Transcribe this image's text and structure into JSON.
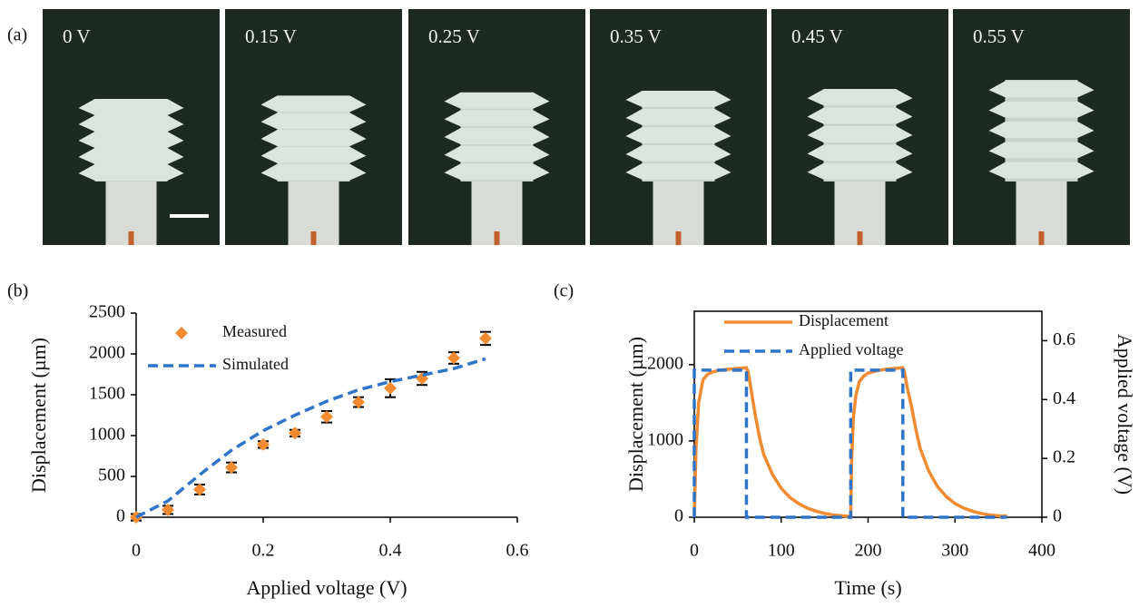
{
  "panel_labels": [
    "(a)",
    "(b)",
    "(c)"
  ],
  "photos": [
    "0 V",
    "0.15 V",
    "0.25 V",
    "0.35 V",
    "0.45 V",
    "0.55 V"
  ],
  "chart_data": [
    {
      "type": "scatter",
      "xlabel": "Applied voltage (V)",
      "ylabel": "Displacement (µm)",
      "x": [
        0,
        0.05,
        0.1,
        0.15,
        0.2,
        0.25,
        0.3,
        0.35,
        0.4,
        0.45,
        0.5,
        0.55
      ],
      "series": [
        {
          "name": "Measured",
          "color": "#f28a30",
          "marker": "diamond",
          "values": [
            0,
            90,
            340,
            610,
            890,
            1030,
            1230,
            1410,
            1580,
            1700,
            1950,
            2190
          ],
          "errors": [
            40,
            50,
            60,
            60,
            40,
            40,
            70,
            60,
            110,
            80,
            70,
            80
          ]
        },
        {
          "name": "Simulated",
          "color": "#2e75c9",
          "dashed": true,
          "values": [
            0,
            200,
            520,
            820,
            1060,
            1250,
            1420,
            1560,
            1660,
            1740,
            1820,
            1940
          ]
        }
      ],
      "xlim": [
        0,
        0.6
      ],
      "xticks": [
        0,
        0.2,
        0.4,
        0.6
      ],
      "ylim": [
        0,
        2500
      ],
      "yticks": [
        0,
        500,
        1000,
        1500,
        2000,
        2500
      ],
      "legend": "upper left",
      "frame": false
    },
    {
      "type": "line",
      "xlabel": "Time (s)",
      "ylabel": "Displacement (µm)",
      "y2label": "Applied voltage (V)",
      "series": [
        {
          "name": "Displacement",
          "color": "#f28a30",
          "x": [
            0,
            2,
            5,
            10,
            15,
            20,
            30,
            40,
            50,
            60,
            62,
            65,
            70,
            75,
            80,
            90,
            100,
            110,
            120,
            130,
            140,
            150,
            160,
            170,
            180,
            181,
            183,
            186,
            190,
            195,
            200,
            210,
            220,
            230,
            240,
            242,
            245,
            250,
            255,
            260,
            270,
            280,
            290,
            300,
            310,
            320,
            330,
            340,
            350,
            360
          ],
          "values": [
            0,
            900,
            1500,
            1800,
            1870,
            1900,
            1930,
            1940,
            1950,
            1960,
            1900,
            1700,
            1350,
            1050,
            820,
            560,
            380,
            260,
            180,
            120,
            80,
            50,
            30,
            20,
            10,
            700,
            1300,
            1600,
            1780,
            1850,
            1890,
            1920,
            1940,
            1950,
            1960,
            1900,
            1700,
            1450,
            1150,
            900,
            600,
            400,
            270,
            180,
            120,
            80,
            50,
            30,
            20,
            15
          ]
        },
        {
          "name": "Applied voltage",
          "color": "#2e75c9",
          "dashed": true,
          "axis": "y2",
          "x": [
            0,
            0,
            60,
            60,
            180,
            180,
            240,
            240,
            360
          ],
          "values": [
            0,
            0.5,
            0.5,
            0,
            0,
            0.5,
            0.5,
            0,
            0
          ]
        }
      ],
      "xlim": [
        0,
        400
      ],
      "xticks": [
        0,
        100,
        200,
        300,
        400
      ],
      "ylim": [
        0,
        2700
      ],
      "yticks": [
        0,
        1000,
        2000
      ],
      "y2lim": [
        0,
        0.7
      ],
      "y2ticks": [
        0,
        0.2,
        0.4,
        0.6
      ],
      "legend": "upper left",
      "frame": true
    }
  ]
}
